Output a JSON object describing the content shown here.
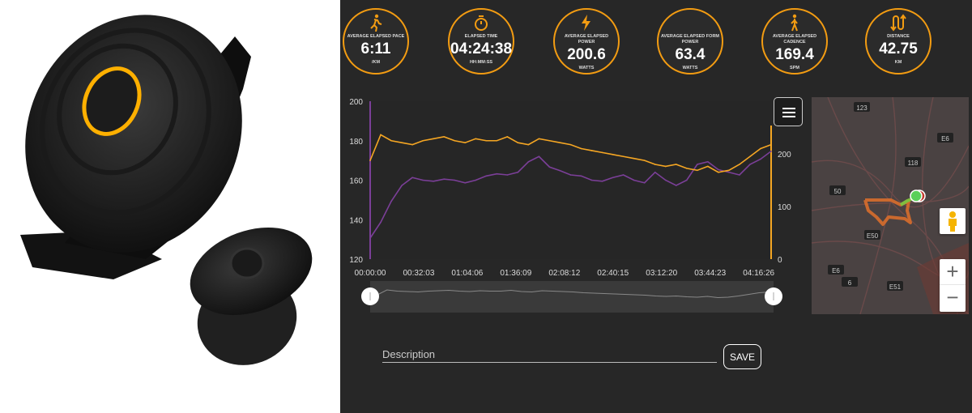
{
  "stats": [
    {
      "icon": "runner-icon",
      "label": "AVERAGE ELAPSED PACE",
      "value": "6:11",
      "unit": "/KM"
    },
    {
      "icon": "stopwatch-icon",
      "label": "ELAPSED TIME",
      "value": "04:24:38",
      "unit": "HH:MM:SS"
    },
    {
      "icon": "lightning-icon",
      "label": "AVERAGE ELAPSED POWER",
      "value": "200.6",
      "unit": "WATTS"
    },
    {
      "icon": "form-power-icon",
      "label": "AVERAGE ELAPSED FORM POWER",
      "value": "63.4",
      "unit": "WATTS"
    },
    {
      "icon": "walker-icon",
      "label": "AVERAGE ELAPSED CADENCE",
      "value": "169.4",
      "unit": "SPM"
    },
    {
      "icon": "route-arrows-icon",
      "label": "DISTANCE",
      "value": "42.75",
      "unit": "KM"
    }
  ],
  "colors": {
    "accent": "#f39c12",
    "cadence": "#f5a623",
    "power": "#7b3f98",
    "background": "#272727"
  },
  "chart_data": {
    "type": "line",
    "x_range": [
      "00:00:00",
      "04:24:38"
    ],
    "x_ticks": [
      "00:00:00",
      "00:32:03",
      "01:04:06",
      "01:36:09",
      "02:08:12",
      "02:40:15",
      "03:12:20",
      "03:44:23",
      "04:16:26"
    ],
    "y_left": {
      "ticks": [
        "120",
        "140",
        "160",
        "180",
        "200"
      ],
      "range": [
        120,
        200
      ]
    },
    "y_right": {
      "ticks": [
        "0",
        "100",
        "200"
      ],
      "range": [
        0,
        300
      ]
    },
    "grid": false,
    "series": [
      {
        "axis": "left",
        "color": "#f5a623",
        "values": [
          170,
          183,
          180,
          179,
          178,
          180,
          181,
          182,
          180,
          179,
          181,
          180,
          180,
          182,
          179,
          178,
          181,
          180,
          179,
          178,
          176,
          175,
          174,
          173,
          172,
          171,
          170,
          168,
          167,
          168,
          166,
          165,
          167,
          164,
          165,
          168,
          172,
          176,
          178
        ]
      },
      {
        "axis": "right",
        "color": "#7b3f98",
        "values": [
          40,
          70,
          110,
          140,
          155,
          150,
          148,
          152,
          150,
          145,
          150,
          158,
          162,
          160,
          165,
          185,
          195,
          175,
          168,
          160,
          158,
          150,
          148,
          155,
          160,
          150,
          145,
          165,
          150,
          140,
          150,
          180,
          185,
          170,
          165,
          160,
          180,
          190,
          205
        ]
      }
    ]
  },
  "map": {
    "labels": [
      "123",
      "E6",
      "118",
      "50",
      "E50",
      "E6",
      "6",
      "E51"
    ],
    "zoom_in": "+",
    "zoom_out": "−"
  },
  "description": {
    "placeholder": "Description",
    "value": ""
  },
  "save_label": "SAVE"
}
